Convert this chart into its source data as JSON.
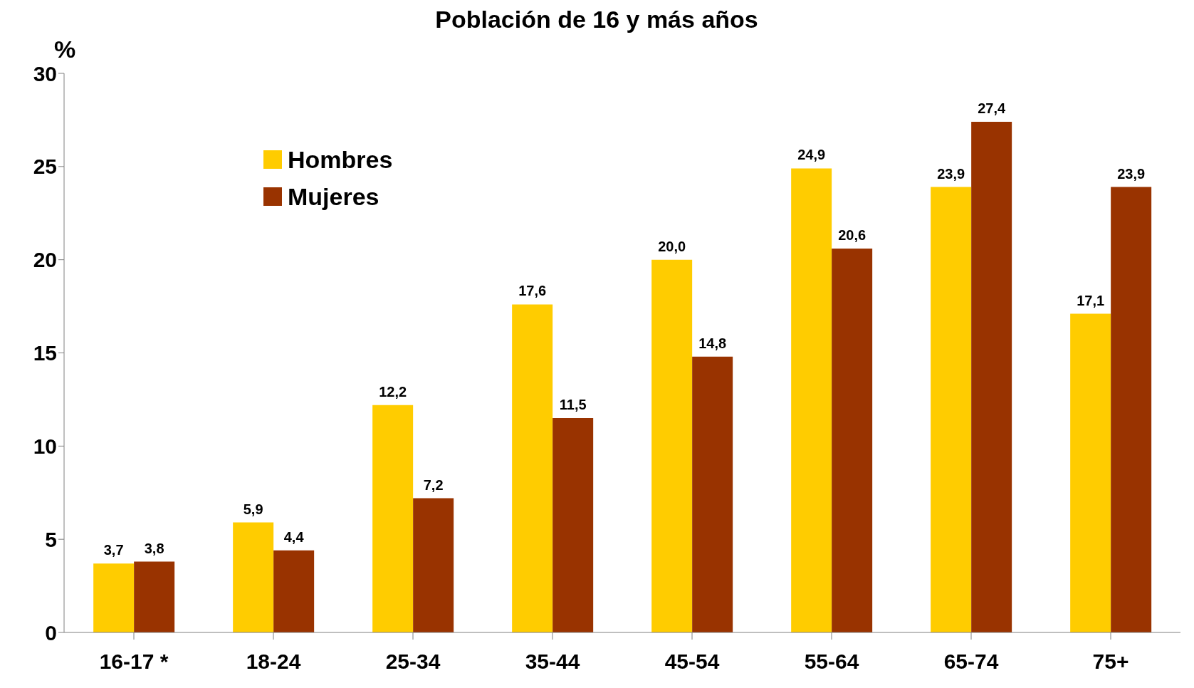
{
  "chart_data": {
    "type": "bar",
    "title": "Población de 16 y más años",
    "ylabel": "%",
    "categories": [
      "16-17 *",
      "18-24",
      "25-34",
      "35-44",
      "45-54",
      "55-64",
      "65-74",
      "75+"
    ],
    "series": [
      {
        "name": "Hombres",
        "color": "#ffcc00",
        "values": [
          3.7,
          5.9,
          12.2,
          17.6,
          20.0,
          24.9,
          23.9,
          17.1
        ],
        "value_labels": [
          "3,7",
          "5,9",
          "12,2",
          "17,6",
          "20,0",
          "24,9",
          "23,9",
          "17,1"
        ]
      },
      {
        "name": "Mujeres",
        "color": "#993300",
        "values": [
          3.8,
          4.4,
          7.2,
          11.5,
          14.8,
          20.6,
          27.4,
          23.9
        ],
        "value_labels": [
          "3,8",
          "4,4",
          "7,2",
          "11,5",
          "14,8",
          "20,6",
          "27,4",
          "23,9"
        ]
      }
    ],
    "ylim": [
      0,
      30
    ],
    "yticks": [
      0,
      5,
      10,
      15,
      20,
      25,
      30
    ],
    "grid": false,
    "legend": "top left"
  }
}
